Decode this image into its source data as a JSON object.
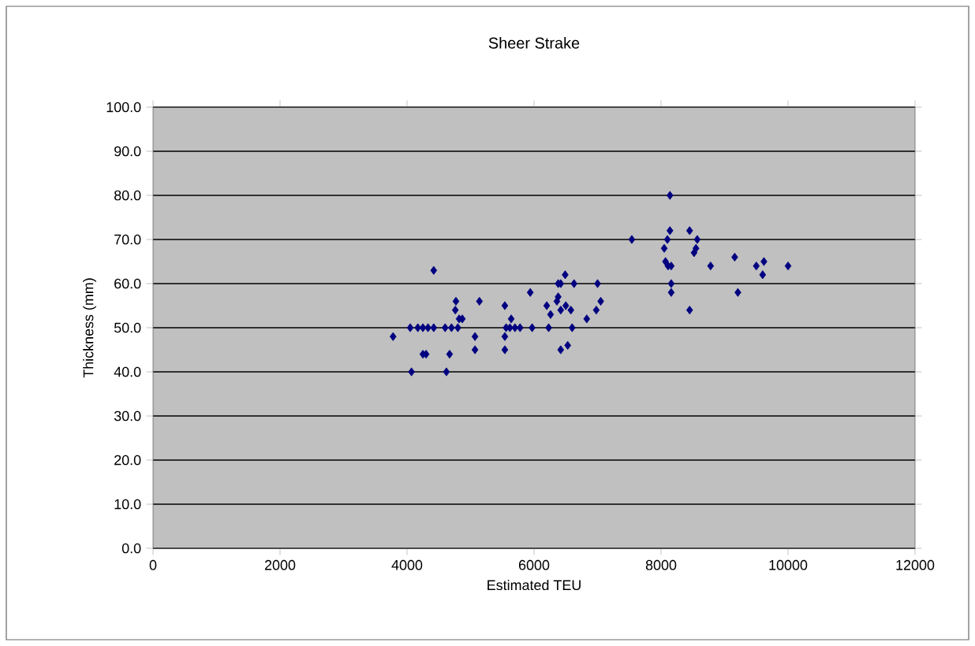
{
  "chart_data": {
    "type": "scatter",
    "title": "Sheer Strake",
    "xlabel": "Estimated TEU",
    "ylabel": "Thickness (mm)",
    "color": "#000080",
    "marker": "diamond",
    "grid": "y",
    "xlim": [
      0,
      12000
    ],
    "xticks": [
      0,
      2000,
      4000,
      6000,
      8000,
      10000,
      12000
    ],
    "ylim": [
      0,
      100
    ],
    "yticks": [
      {
        "value": 0,
        "label": "0.0"
      },
      {
        "value": 10,
        "label": "10.0"
      },
      {
        "value": 20,
        "label": "20.0"
      },
      {
        "value": 30,
        "label": "30.0"
      },
      {
        "value": 40,
        "label": "40.0"
      },
      {
        "value": 50,
        "label": "50.0"
      },
      {
        "value": 60,
        "label": "60.0"
      },
      {
        "value": 70,
        "label": "70.0"
      },
      {
        "value": 80,
        "label": "80.0"
      },
      {
        "value": 90,
        "label": "90.0"
      },
      {
        "value": 100,
        "label": "100.0"
      }
    ],
    "x": [
      3780,
      4050,
      4170,
      4250,
      4330,
      4420,
      4420,
      4070,
      4250,
      4300,
      4620,
      4670,
      4600,
      4700,
      4800,
      4770,
      4760,
      4820,
      4870,
      5070,
      5070,
      5140,
      5540,
      5540,
      5540,
      5640,
      5560,
      5620,
      5700,
      5780,
      5940,
      5970,
      6200,
      6230,
      6260,
      6360,
      6380,
      6420,
      6490,
      6630,
      6380,
      6420,
      6500,
      6580,
      6600,
      6420,
      6530,
      6830,
      6980,
      7050,
      7000,
      7540,
      8140,
      8140,
      8100,
      8050,
      8070,
      8110,
      8160,
      8450,
      8570,
      8550,
      8520,
      8160,
      8160,
      8450,
      8780,
      9160,
      9210,
      9500,
      9620,
      9600,
      10000
    ],
    "values": [
      48,
      50,
      50,
      50,
      50,
      50,
      63,
      40,
      44,
      44,
      40,
      44,
      50,
      50,
      50,
      56,
      54,
      52,
      52,
      48,
      45,
      56,
      55,
      48,
      45,
      52,
      50,
      50,
      50,
      50,
      58,
      50,
      55,
      50,
      53,
      56,
      60,
      60,
      62,
      60,
      57,
      54,
      55,
      54,
      50,
      45,
      46,
      52,
      54,
      56,
      60,
      70,
      80,
      72,
      70,
      68,
      65,
      64,
      64,
      72,
      70,
      68,
      67,
      60,
      58,
      54,
      64,
      66,
      58,
      64,
      65,
      62,
      64
    ]
  }
}
